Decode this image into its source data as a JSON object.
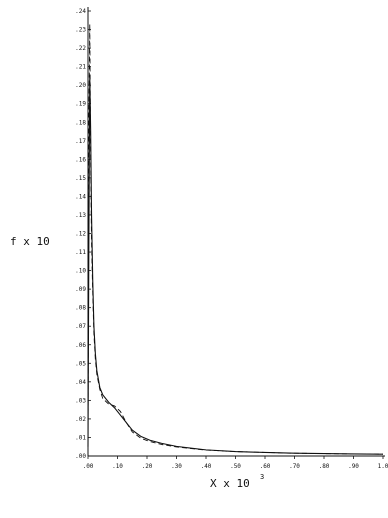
{
  "chart_data": {
    "type": "line",
    "title": "",
    "xlabel": "X x 10",
    "xlabel_exponent": "3",
    "ylabel": "f x 10",
    "xlim": [
      0.0,
      1.0
    ],
    "ylim": [
      0.0,
      0.24
    ],
    "x_ticks": [
      0.0,
      0.1,
      0.2,
      0.3,
      0.4,
      0.5,
      0.6,
      0.7,
      0.8,
      0.9,
      1.0
    ],
    "x_tick_labels": [
      ".00",
      ".10",
      ".20",
      ".30",
      ".40",
      ".50",
      ".60",
      ".70",
      ".80",
      ".90",
      "1.0"
    ],
    "y_ticks": [
      0.0,
      0.01,
      0.02,
      0.03,
      0.04,
      0.05,
      0.06,
      0.07,
      0.08,
      0.09,
      0.1,
      0.11,
      0.12,
      0.13,
      0.14,
      0.15,
      0.16,
      0.17,
      0.18,
      0.19,
      0.2,
      0.21,
      0.22,
      0.23,
      0.24
    ],
    "y_tick_labels": [
      ".00",
      ".01",
      ".02",
      ".03",
      ".04",
      ".05",
      ".06",
      ".07",
      ".08",
      ".09",
      ".10",
      ".11",
      ".12",
      ".13",
      ".14",
      ".15",
      ".16",
      ".17",
      ".18",
      ".19",
      ".20",
      ".21",
      ".22",
      ".23",
      ".24"
    ],
    "grid": false,
    "legend": "none",
    "series": [
      {
        "style": "solid",
        "color": "#111111",
        "x": [
          0.0,
          0.003,
          0.006,
          0.009,
          0.012,
          0.016,
          0.02,
          0.025,
          0.03,
          0.04,
          0.05,
          0.07,
          0.09,
          0.11,
          0.13,
          0.15,
          0.18,
          0.21,
          0.25,
          0.3,
          0.35,
          0.4,
          0.5,
          0.6,
          0.7,
          0.8,
          0.9,
          1.0
        ],
        "y": [
          0.005,
          0.12,
          0.205,
          0.175,
          0.13,
          0.095,
          0.07,
          0.055,
          0.046,
          0.037,
          0.033,
          0.029,
          0.026,
          0.022,
          0.018,
          0.014,
          0.0105,
          0.0085,
          0.0068,
          0.0052,
          0.0042,
          0.0033,
          0.0024,
          0.0019,
          0.0015,
          0.0013,
          0.0011,
          0.001
        ]
      },
      {
        "style": "dashed",
        "color": "#111111",
        "x": [
          0.0,
          0.003,
          0.006,
          0.009,
          0.012,
          0.016,
          0.02,
          0.025,
          0.03,
          0.04,
          0.05,
          0.07,
          0.09,
          0.11,
          0.13,
          0.15,
          0.18,
          0.21,
          0.25,
          0.3,
          0.35,
          0.4,
          0.5,
          0.6,
          0.7,
          0.8,
          0.9,
          1.0
        ],
        "y": [
          0.01,
          0.18,
          0.233,
          0.16,
          0.115,
          0.088,
          0.066,
          0.052,
          0.044,
          0.036,
          0.031,
          0.028,
          0.027,
          0.024,
          0.018,
          0.013,
          0.0095,
          0.0078,
          0.0062,
          0.0049,
          0.004,
          0.0032,
          0.0024,
          0.0019,
          0.0015,
          0.0013,
          0.0011,
          0.001
        ]
      }
    ]
  }
}
